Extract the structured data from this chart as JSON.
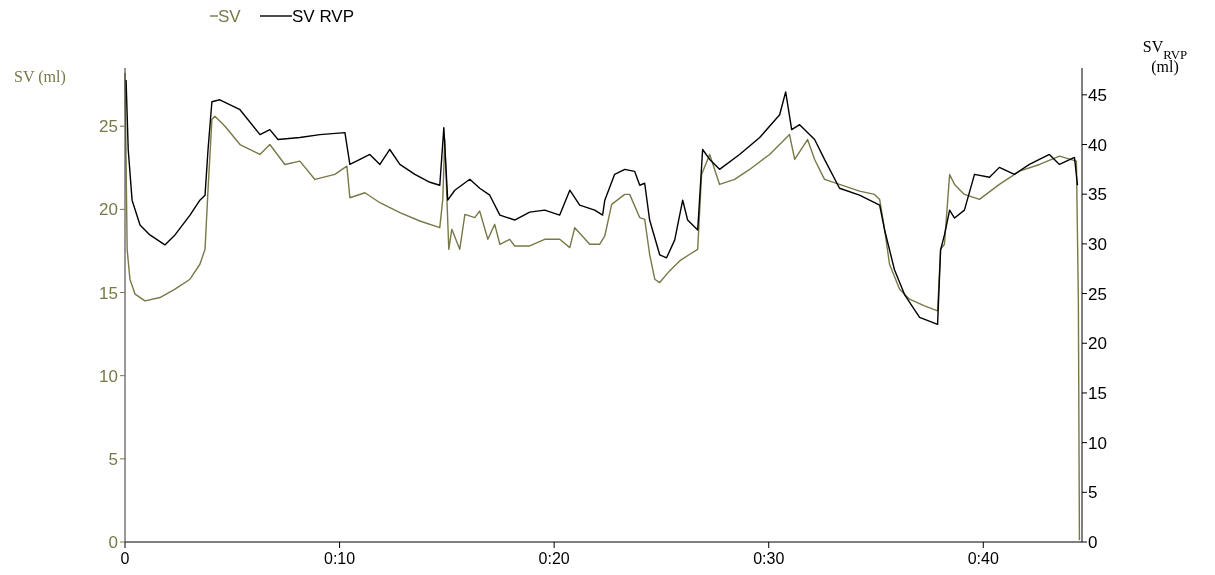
{
  "chart_data": {
    "type": "line",
    "ylabel": "SV (ml)",
    "y2label": "SV$_{RVP}$ (ml)",
    "legend": "top left",
    "marker": "none",
    "line_style": "solid",
    "grid": false,
    "xlim": [
      0,
      44.6
    ],
    "xticks": [
      0,
      {
        "value": 10,
        "label": "0:10"
      },
      {
        "value": 20,
        "label": "0:20"
      },
      {
        "value": 30,
        "label": "0:30"
      },
      {
        "value": 40,
        "label": "0:40"
      }
    ],
    "ylim": [
      0,
      28.5
    ],
    "yticks": [
      0,
      5,
      10,
      15,
      20,
      25
    ],
    "y2lim": [
      0,
      47.7
    ],
    "y2ticks": [
      0,
      5,
      10,
      15,
      20,
      25,
      30,
      35,
      40,
      45
    ],
    "series": [
      {
        "name": "SV",
        "color": "#787848",
        "x": [
          0,
          0.1,
          0.23,
          0.47,
          0.93,
          1.63,
          2.33,
          3.03,
          3.49,
          3.73,
          3.87,
          4.05,
          4.19,
          4.66,
          5.36,
          6.29,
          6.75,
          7.45,
          8.15,
          8.85,
          9.78,
          10.34,
          10.48,
          11.18,
          11.88,
          12.81,
          13.74,
          14.67,
          14.81,
          14.9,
          15.09,
          15.23,
          15.6,
          15.84,
          16.3,
          16.53,
          16.91,
          17.23,
          17.47,
          17.93,
          18.16,
          18.86,
          19.56,
          20.26,
          20.73,
          20.96,
          21.66,
          22.12,
          22.36,
          22.68,
          23.29,
          23.52,
          23.99,
          24.22,
          24.45,
          24.69,
          24.92,
          25.38,
          25.85,
          26.32,
          26.69,
          26.87,
          27.25,
          27.71,
          28.41,
          29.11,
          30.04,
          30.74,
          30.97,
          31.21,
          31.81,
          32.14,
          32.6,
          33.3,
          34.23,
          34.93,
          35.17,
          35.4,
          35.63,
          36.1,
          36.56,
          37.26,
          37.87,
          38.01,
          38.19,
          38.43,
          38.66,
          39.12,
          39.82,
          40.75,
          41.69,
          42.62,
          43.55,
          44.34,
          44.43,
          44.48
        ],
        "values": [
          28.2,
          17.6,
          15.8,
          14.9,
          14.5,
          14.7,
          15.2,
          15.8,
          16.7,
          17.6,
          21.2,
          25.4,
          25.6,
          25.0,
          23.9,
          23.3,
          23.9,
          22.7,
          22.9,
          21.8,
          22.1,
          22.6,
          20.7,
          21.0,
          20.4,
          19.8,
          19.3,
          18.9,
          20.6,
          24.2,
          17.6,
          18.8,
          17.6,
          19.7,
          19.5,
          19.9,
          18.2,
          19.1,
          17.9,
          18.2,
          17.8,
          17.8,
          18.2,
          18.2,
          17.7,
          18.9,
          17.9,
          17.9,
          18.4,
          20.3,
          20.9,
          20.9,
          19.5,
          19.4,
          17.3,
          15.8,
          15.6,
          16.3,
          16.9,
          17.3,
          17.6,
          22.1,
          23.3,
          21.5,
          21.8,
          22.4,
          23.3,
          24.2,
          24.5,
          23.0,
          24.2,
          23.0,
          21.8,
          21.5,
          21.1,
          20.9,
          20.6,
          18.8,
          16.7,
          15.2,
          14.6,
          14.2,
          13.9,
          17.6,
          17.9,
          22.1,
          21.5,
          20.9,
          20.6,
          21.5,
          22.3,
          22.7,
          23.2,
          22.9,
          14.6,
          0.1
        ]
      },
      {
        "name": "SV RVP",
        "color": "#000000",
        "axis": "y2",
        "x": [
          0.05,
          0.15,
          0.33,
          0.7,
          1.16,
          1.86,
          2.33,
          3.03,
          3.49,
          3.73,
          3.87,
          4.05,
          4.42,
          5.36,
          6.29,
          6.75,
          7.13,
          8.15,
          9.08,
          10.25,
          10.48,
          10.95,
          11.41,
          11.88,
          12.34,
          12.81,
          13.51,
          14.21,
          14.67,
          14.86,
          15.04,
          15.37,
          16.07,
          16.53,
          17.0,
          17.47,
          18.16,
          18.86,
          19.56,
          20.26,
          20.73,
          21.19,
          21.89,
          22.26,
          22.36,
          22.82,
          23.29,
          23.75,
          23.99,
          24.22,
          24.45,
          24.92,
          25.24,
          25.62,
          25.99,
          26.22,
          26.69,
          26.92,
          27.25,
          27.71,
          28.64,
          29.58,
          30.51,
          30.79,
          31.07,
          31.44,
          32.14,
          32.6,
          33.3,
          34.23,
          35.17,
          35.4,
          35.86,
          36.33,
          37.03,
          37.87,
          38.01,
          38.19,
          38.43,
          38.66,
          39.12,
          39.59,
          40.29,
          40.75,
          41.45,
          42.15,
          43.08,
          43.55,
          44.25,
          44.39
        ],
        "values": [
          46.5,
          39.5,
          34.4,
          31.9,
          30.9,
          29.9,
          30.9,
          32.9,
          34.4,
          34.9,
          39.5,
          44.3,
          44.5,
          43.5,
          41.0,
          41.5,
          40.5,
          40.7,
          41.0,
          41.2,
          38.0,
          38.5,
          39.0,
          38.0,
          39.5,
          38.0,
          37.0,
          36.2,
          35.9,
          41.7,
          34.4,
          35.4,
          36.5,
          35.6,
          34.9,
          32.9,
          32.4,
          33.2,
          33.4,
          32.9,
          35.4,
          33.9,
          33.4,
          32.9,
          34.4,
          37.0,
          37.5,
          37.3,
          35.9,
          36.1,
          32.4,
          28.9,
          28.6,
          30.4,
          34.4,
          32.4,
          31.4,
          39.5,
          38.5,
          37.5,
          39.0,
          40.7,
          43.0,
          45.3,
          41.5,
          42.0,
          40.5,
          38.5,
          35.6,
          34.9,
          33.9,
          31.4,
          27.4,
          24.9,
          22.6,
          21.9,
          29.4,
          30.9,
          33.4,
          32.6,
          33.4,
          37.0,
          36.7,
          37.7,
          37.0,
          38.0,
          39.0,
          38.0,
          38.7,
          35.9
        ]
      }
    ]
  }
}
